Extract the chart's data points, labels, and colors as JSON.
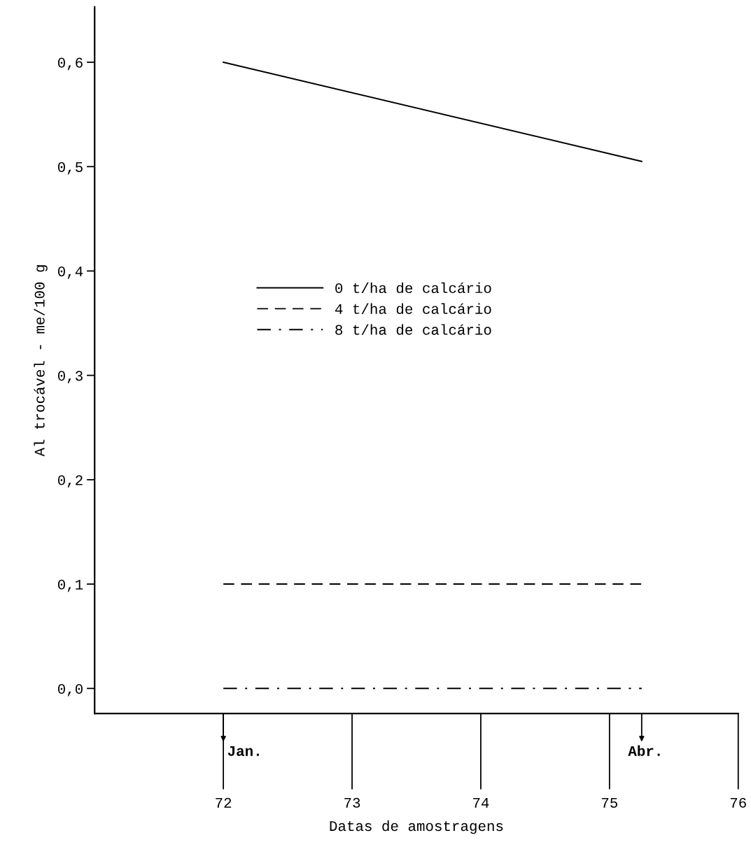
{
  "chart_data": {
    "type": "line",
    "xlabel": "Datas de amostragens",
    "ylabel": "Al trocável - me/100 g",
    "x": [
      72,
      75.25
    ],
    "series": [
      {
        "name": "0 t/ha de calcário",
        "color": "#000000",
        "line_style": "solid",
        "values": [
          0.6,
          0.505
        ]
      },
      {
        "name": "4 t/ha de calcário",
        "color": "#000000",
        "line_style": "dashed",
        "values": [
          0.1,
          0.1
        ]
      },
      {
        "name": "8 t/ha de calcário",
        "color": "#000000",
        "line_style": "dashdot",
        "values": [
          0.0,
          0.0
        ]
      }
    ],
    "xlim": [
      71,
      76
    ],
    "xticks": [
      72,
      73,
      74,
      75,
      76
    ],
    "ylim": [
      -0.024,
      0.653
    ],
    "yticks": [
      {
        "value": 0.0,
        "label": "0,0"
      },
      {
        "value": 0.1,
        "label": "0,1"
      },
      {
        "value": 0.2,
        "label": "0,2"
      },
      {
        "value": 0.3,
        "label": "0,3"
      },
      {
        "value": 0.4,
        "label": "0,4"
      },
      {
        "value": 0.5,
        "label": "0,5"
      },
      {
        "value": 0.6,
        "label": "0,6"
      }
    ],
    "annotations": [
      "Jan.",
      "Abr."
    ],
    "grid": false,
    "legend": "center",
    "marker": "none"
  }
}
